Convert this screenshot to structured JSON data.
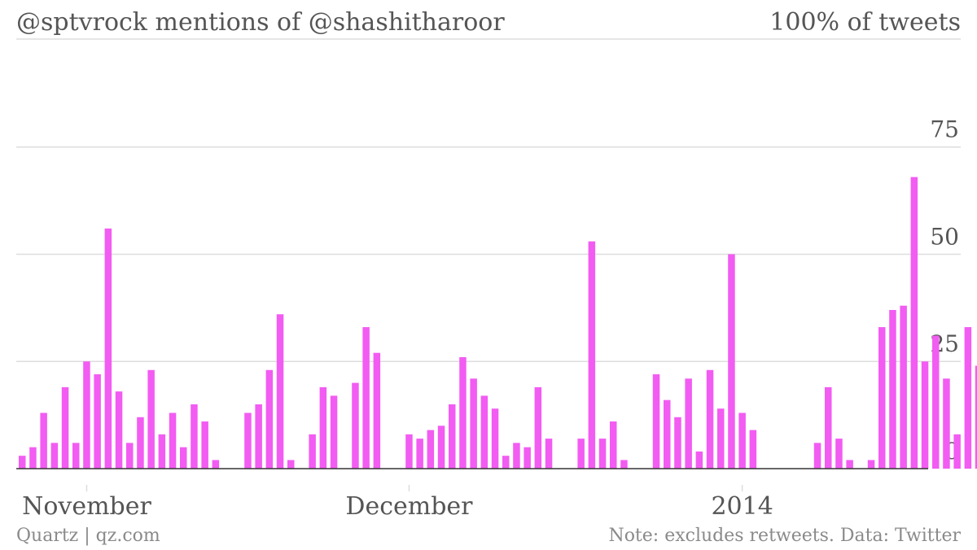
{
  "header": {
    "title": "@sptvrock mentions of @shashitharoor",
    "subtitle": "100% of tweets"
  },
  "footer": {
    "source": "Quartz | qz.com",
    "note": "Note: excludes retweets. Data: Twitter"
  },
  "colors": {
    "bar": "#F25CF2",
    "grid": "#dddddd",
    "baseline": "#333333",
    "text": "#555555",
    "muted": "#8a8a8a"
  },
  "chart_data": {
    "type": "bar",
    "ylim": [
      0,
      85
    ],
    "yticks": [
      0,
      25,
      50,
      75
    ],
    "grid": true,
    "xticks": [
      {
        "label": "November",
        "index": 6
      },
      {
        "label": "December",
        "index": 36
      },
      {
        "label": "2014",
        "index": 67
      }
    ],
    "values": [
      3,
      5,
      13,
      6,
      19,
      6,
      25,
      22,
      56,
      18,
      6,
      12,
      23,
      8,
      13,
      5,
      15,
      11,
      2,
      null,
      null,
      13,
      15,
      23,
      36,
      2,
      null,
      8,
      19,
      17,
      null,
      20,
      33,
      27,
      null,
      null,
      8,
      7,
      9,
      10,
      15,
      26,
      21,
      17,
      14,
      3,
      6,
      5,
      19,
      7,
      null,
      null,
      7,
      53,
      7,
      11,
      2,
      null,
      null,
      22,
      16,
      12,
      21,
      4,
      23,
      14,
      50,
      13,
      9,
      null,
      null,
      null,
      null,
      null,
      6,
      19,
      7,
      2,
      null,
      2,
      33,
      37,
      38,
      68,
      25,
      31,
      21,
      8,
      33,
      24
    ]
  }
}
